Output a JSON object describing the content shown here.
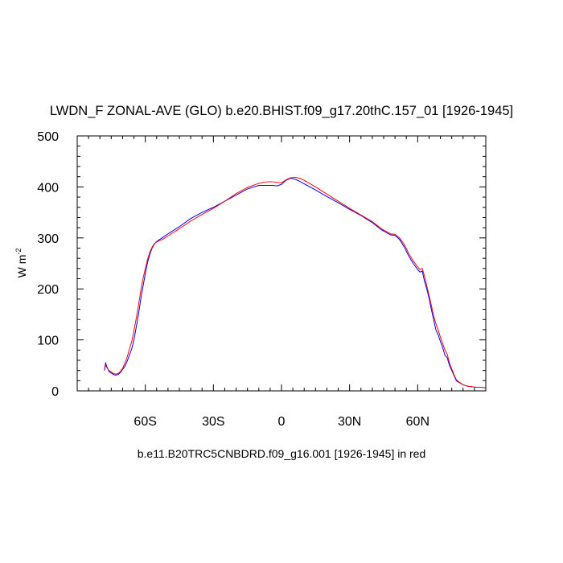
{
  "chart_data": {
    "type": "line",
    "title": "LWDN_F ZONAL-AVE (GLO) b.e20.BHIST.f09_g17.20thC.157_01 [1926-1945]",
    "xlabel": "b.e11.B20TRC5CNBDRD.f09_g16.001 [1926-1945] in red",
    "ylabel_base": "W m",
    "ylabel_sup": "-2",
    "xlim": [
      -90,
      90
    ],
    "ylim": [
      0,
      500
    ],
    "grid": false,
    "x_tick_values": [
      -60,
      -30,
      0,
      30,
      60
    ],
    "x_tick_labels": [
      "60S",
      "30S",
      "0",
      "30N",
      "60N"
    ],
    "y_tick_values": [
      0,
      100,
      200,
      300,
      400,
      500
    ],
    "y_tick_labels": [
      "0",
      "100",
      "200",
      "300",
      "400",
      "500"
    ],
    "series": [
      {
        "color": "#0000ff",
        "x": [
          -78,
          -77.5,
          -77,
          -76,
          -75,
          -74,
          -73,
          -72,
          -71,
          -70,
          -69,
          -68,
          -67,
          -66,
          -65,
          -64,
          -63,
          -62,
          -61,
          -60,
          -59,
          -58,
          -57,
          -56,
          -55,
          -54,
          -52,
          -50,
          -45,
          -40,
          -35,
          -30,
          -25,
          -20,
          -15,
          -10,
          -8,
          -6,
          -4,
          -2,
          0,
          2,
          4,
          6,
          8,
          10,
          15,
          20,
          25,
          30,
          35,
          40,
          42,
          44,
          46,
          48,
          50,
          52,
          54,
          56,
          58,
          60,
          61,
          62,
          63,
          64,
          65,
          66,
          67,
          68,
          69,
          70,
          71,
          72,
          73,
          74,
          75,
          76,
          77,
          78,
          80,
          82,
          84,
          86,
          88,
          90
        ],
        "y": [
          40,
          55,
          48,
          38,
          35,
          32,
          31,
          32,
          36,
          42,
          48,
          58,
          70,
          82,
          100,
          125,
          150,
          180,
          205,
          230,
          252,
          268,
          280,
          288,
          293,
          296,
          302,
          308,
          322,
          338,
          350,
          360,
          372,
          384,
          396,
          403,
          403,
          403,
          403,
          402,
          405,
          413,
          417,
          415,
          411,
          406,
          394,
          381,
          369,
          356,
          344,
          330,
          323,
          316,
          311,
          306,
          305,
          297,
          283,
          265,
          250,
          238,
          233,
          235,
          215,
          200,
          182,
          160,
          140,
          120,
          110,
          97,
          85,
          70,
          65,
          50,
          40,
          30,
          20,
          17,
          12,
          9,
          8,
          7,
          7,
          6
        ]
      },
      {
        "color": "#ff0000",
        "x": [
          -78,
          -77.5,
          -77,
          -76,
          -75,
          -74,
          -73,
          -72,
          -71,
          -70,
          -69,
          -68,
          -67,
          -66,
          -65,
          -64,
          -63,
          -62,
          -61,
          -60,
          -59,
          -58,
          -57,
          -56,
          -55,
          -54,
          -52,
          -50,
          -45,
          -40,
          -35,
          -30,
          -25,
          -20,
          -15,
          -10,
          -8,
          -6,
          -4,
          -2,
          0,
          2,
          4,
          6,
          8,
          10,
          15,
          20,
          25,
          30,
          35,
          40,
          42,
          44,
          46,
          48,
          50,
          52,
          54,
          56,
          58,
          60,
          61,
          62,
          63,
          64,
          65,
          66,
          67,
          68,
          69,
          70,
          71,
          72,
          73,
          74,
          75,
          76,
          77,
          78,
          80,
          82,
          84,
          86,
          88,
          90
        ],
        "y": [
          44,
          50,
          46,
          40,
          37,
          34,
          33,
          34,
          38,
          44,
          54,
          66,
          82,
          96,
          118,
          142,
          168,
          196,
          220,
          240,
          258,
          272,
          282,
          289,
          292,
          294,
          298,
          304,
          318,
          333,
          346,
          358,
          372,
          387,
          399,
          407,
          409,
          410,
          410,
          409,
          408,
          414,
          418,
          419,
          417,
          413,
          400,
          386,
          372,
          358,
          345,
          332,
          325,
          318,
          313,
          308,
          307,
          300,
          288,
          270,
          255,
          243,
          238,
          240,
          225,
          206,
          188,
          168,
          148,
          132,
          120,
          105,
          93,
          80,
          72,
          55,
          43,
          32,
          22,
          18,
          12,
          9,
          8,
          7,
          7,
          6
        ]
      }
    ]
  }
}
